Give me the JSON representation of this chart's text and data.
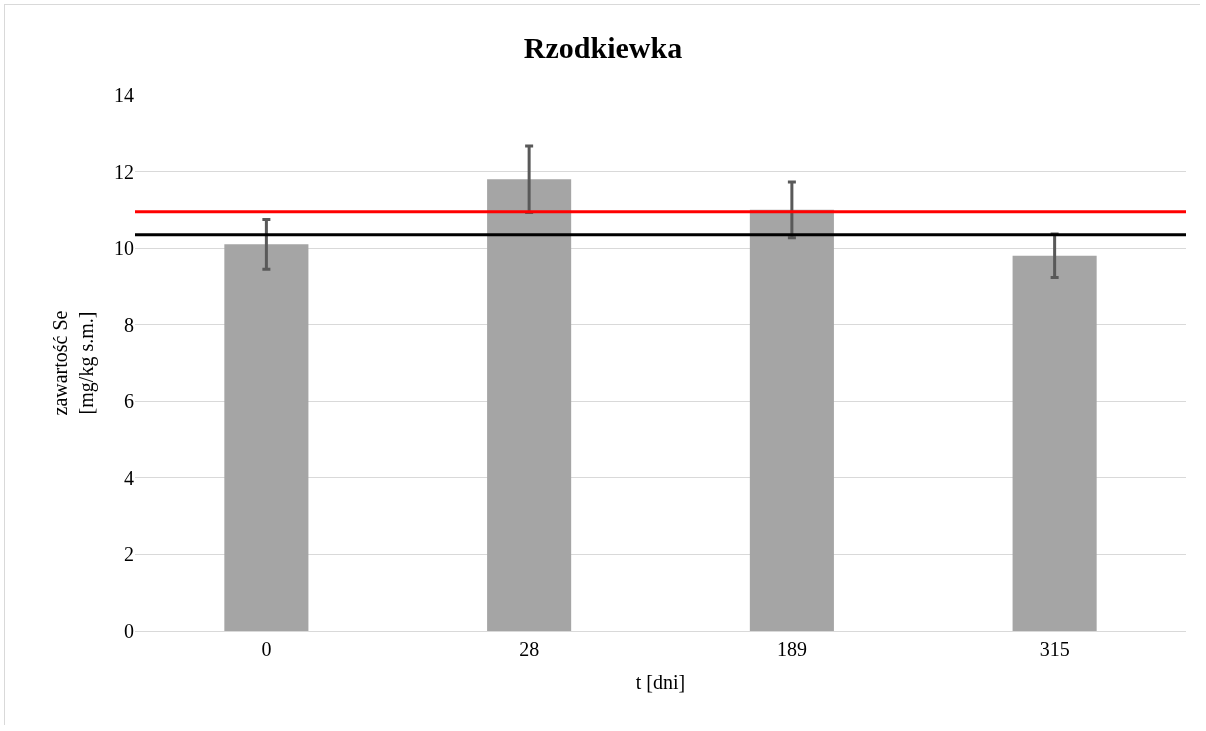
{
  "chart_data": {
    "type": "bar",
    "title": "Rzodkiewka",
    "xlabel": "t [dni]",
    "ylabel": "zawartość Se\n[mg/kg s.m.]",
    "categories": [
      "0",
      "28",
      "189",
      "315"
    ],
    "values": [
      10.1,
      11.8,
      11.0,
      9.8
    ],
    "errors": [
      0.65,
      0.87,
      0.73,
      0.57
    ],
    "color": "#a5a5a5",
    "ylim": [
      0,
      14
    ],
    "yticks": [
      0,
      2,
      4,
      6,
      8,
      10,
      12,
      14
    ],
    "grid": "y",
    "ref_lines": [
      {
        "axis": "y",
        "value": 10.95,
        "color": "#ff0000"
      },
      {
        "axis": "y",
        "value": 10.35,
        "color": "#000000"
      }
    ]
  }
}
